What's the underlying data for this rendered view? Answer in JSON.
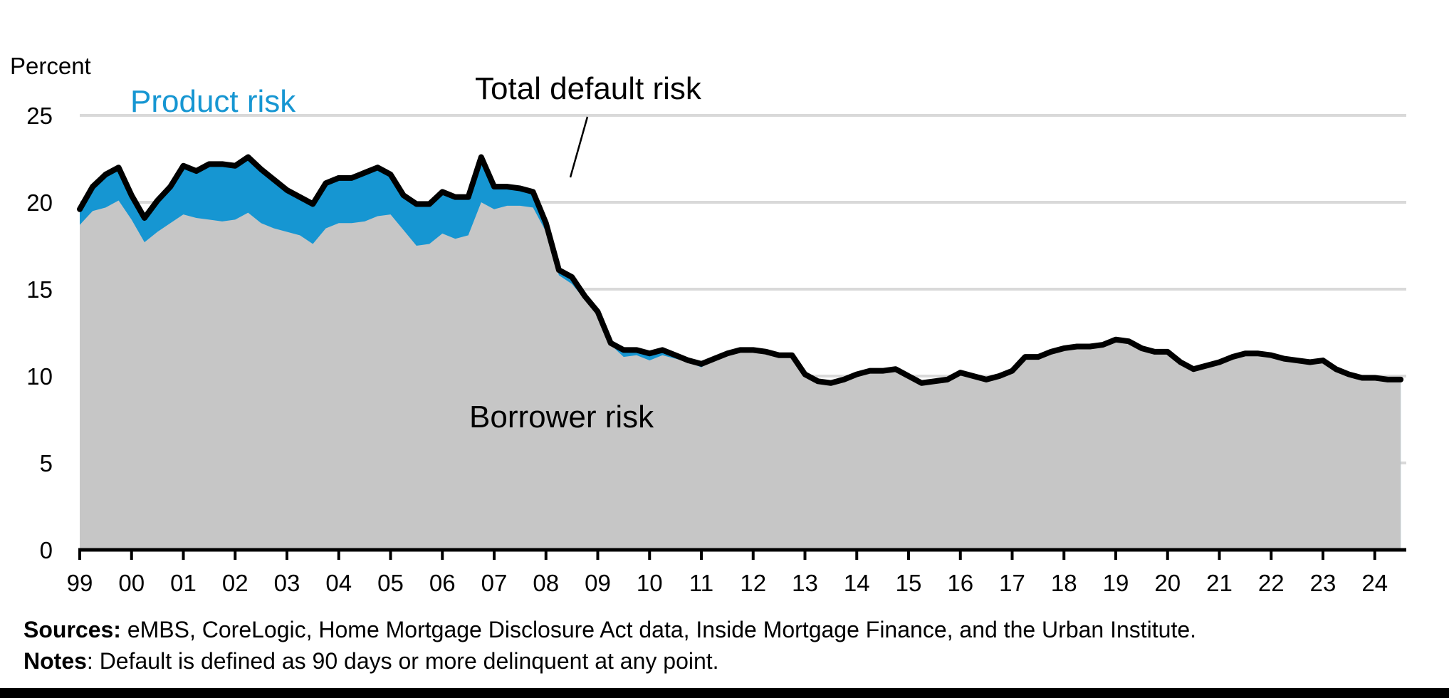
{
  "chart_data": {
    "type": "area",
    "stacked": true,
    "title": "",
    "ylabel": "Percent",
    "xlabel": "",
    "ylim": [
      0,
      25
    ],
    "yticks": [
      0,
      5,
      10,
      15,
      20,
      25
    ],
    "grid": true,
    "xtick_labels": [
      "99",
      "00",
      "01",
      "02",
      "03",
      "04",
      "05",
      "06",
      "07",
      "08",
      "09",
      "10",
      "11",
      "12",
      "13",
      "14",
      "15",
      "16",
      "17",
      "18",
      "19",
      "20",
      "21",
      "22",
      "23",
      "24"
    ],
    "x_start": 1999.0,
    "x_step": 0.25,
    "series": [
      {
        "name": "Borrower risk",
        "color": "#c6c6c6",
        "values": [
          18.7,
          19.5,
          19.7,
          20.1,
          19.0,
          17.7,
          18.3,
          18.8,
          19.3,
          19.1,
          19.0,
          18.9,
          19.0,
          19.4,
          18.8,
          18.5,
          18.3,
          18.1,
          17.6,
          18.5,
          18.8,
          18.8,
          18.9,
          19.2,
          19.3,
          18.4,
          17.5,
          17.6,
          18.2,
          17.9,
          18.1,
          20.0,
          19.6,
          19.8,
          19.8,
          19.7,
          18.3,
          15.8,
          15.3,
          14.4,
          13.5,
          11.8,
          11.1,
          11.2,
          10.9,
          11.2,
          11.0,
          10.8,
          10.5,
          11.0,
          11.3,
          11.5,
          11.5,
          11.4,
          11.2,
          11.2,
          10.1,
          9.7,
          9.6,
          9.8,
          10.1,
          10.3,
          10.3,
          10.4,
          10.0,
          9.6,
          9.7,
          9.8,
          10.2,
          10.0,
          9.8,
          10.0,
          10.3,
          11.1,
          11.1,
          11.4,
          11.6,
          11.7,
          11.7,
          11.8,
          12.1,
          12.0,
          11.6,
          11.4,
          11.4,
          10.8,
          10.4,
          10.6,
          10.8,
          11.1,
          11.3,
          11.3,
          11.2,
          11.0,
          10.9,
          10.8,
          10.9,
          10.4,
          10.1,
          9.9,
          9.9,
          9.8,
          9.8
        ]
      },
      {
        "name": "Product risk",
        "color": "#1696d2",
        "values": [
          0.9,
          1.4,
          1.9,
          1.9,
          1.4,
          1.4,
          1.8,
          2.1,
          2.8,
          2.7,
          3.2,
          3.3,
          3.1,
          3.2,
          3.1,
          2.8,
          2.4,
          2.2,
          2.3,
          2.6,
          2.6,
          2.6,
          2.8,
          2.8,
          2.3,
          2.0,
          2.4,
          2.3,
          2.4,
          2.4,
          2.2,
          2.6,
          1.3,
          1.1,
          1.0,
          0.9,
          0.5,
          0.3,
          0.4,
          0.2,
          0.2,
          0.1,
          0.4,
          0.3,
          0.4,
          0.3,
          0.2,
          0.1,
          0.2,
          0,
          0,
          0,
          0,
          0,
          0,
          0,
          0,
          0,
          0,
          0,
          0,
          0,
          0,
          0,
          0,
          0,
          0,
          0,
          0,
          0,
          0,
          0,
          0,
          0,
          0,
          0,
          0,
          0,
          0,
          0,
          0,
          0,
          0,
          0,
          0,
          0,
          0,
          0,
          0,
          0,
          0,
          0,
          0,
          0,
          0,
          0,
          0,
          0,
          0,
          0,
          0,
          0,
          0
        ]
      },
      {
        "name": "Total default risk",
        "color": "#000000",
        "type": "line",
        "values": [
          19.6,
          20.9,
          21.6,
          22.0,
          20.4,
          19.1,
          20.1,
          20.9,
          22.1,
          21.8,
          22.2,
          22.2,
          22.1,
          22.6,
          21.9,
          21.3,
          20.7,
          20.3,
          19.9,
          21.1,
          21.4,
          21.4,
          21.7,
          22.0,
          21.6,
          20.4,
          19.9,
          19.9,
          20.6,
          20.3,
          20.3,
          22.6,
          20.9,
          20.9,
          20.8,
          20.6,
          18.8,
          16.1,
          15.7,
          14.6,
          13.7,
          11.9,
          11.5,
          11.5,
          11.3,
          11.5,
          11.2,
          10.9,
          10.7,
          11.0,
          11.3,
          11.5,
          11.5,
          11.4,
          11.2,
          11.2,
          10.1,
          9.7,
          9.6,
          9.8,
          10.1,
          10.3,
          10.3,
          10.4,
          10.0,
          9.6,
          9.7,
          9.8,
          10.2,
          10.0,
          9.8,
          10.0,
          10.3,
          11.1,
          11.1,
          11.4,
          11.6,
          11.7,
          11.7,
          11.8,
          12.1,
          12.0,
          11.6,
          11.4,
          11.4,
          10.8,
          10.4,
          10.6,
          10.8,
          11.1,
          11.3,
          11.3,
          11.2,
          11.0,
          10.9,
          10.8,
          10.9,
          10.4,
          10.1,
          9.9,
          9.9,
          9.8,
          9.8
        ]
      }
    ],
    "annotations": [
      {
        "text": "Product risk",
        "color": "#1696d2"
      },
      {
        "text": "Total default risk",
        "color": "#000000"
      },
      {
        "text": "Borrower risk",
        "color": "#000000"
      }
    ]
  },
  "labels": {
    "y_axis_title": "Percent",
    "product_risk": "Product risk",
    "total_default_risk": "Total default risk",
    "borrower_risk": "Borrower risk"
  },
  "footer": {
    "sources_label": "Sources:",
    "sources_text": " eMBS, CoreLogic, Home Mortgage Disclosure Act data, Inside Mortgage Finance, and the Urban Institute.",
    "notes_label": "Notes",
    "notes_text": ": Default is defined as 90 days or more delinquent at any point."
  }
}
